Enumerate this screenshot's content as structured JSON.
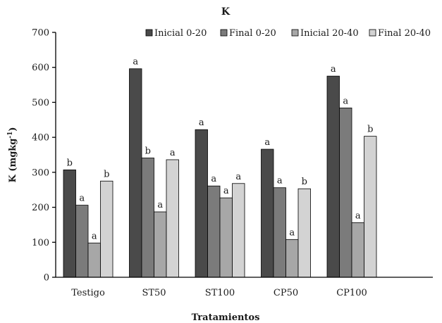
{
  "chart_data": {
    "type": "bar",
    "title": "K",
    "xlabel": "Tratamientos",
    "ylabel": "K (mgkg-1)",
    "ylabel_main": "K (mgkg",
    "ylabel_sup": "-1",
    "ylabel_end": ")",
    "ylim": [
      0,
      700
    ],
    "yticks": [
      0,
      100,
      200,
      300,
      400,
      500,
      600,
      700
    ],
    "grid": false,
    "legend": "top",
    "categories": [
      "Testigo",
      "ST50",
      "ST100",
      "CP50",
      "CP100"
    ],
    "series": [
      {
        "name": "Inicial 0-20",
        "color": "#4a4a4a",
        "values": [
          307,
          596,
          422,
          366,
          575
        ],
        "labels": [
          "b",
          "a",
          "a",
          "a",
          "a"
        ]
      },
      {
        "name": "Final 0-20",
        "color": "#7b7b7b",
        "values": [
          206,
          341,
          261,
          256,
          484
        ],
        "labels": [
          "a",
          "b",
          "a",
          "a",
          "a"
        ]
      },
      {
        "name": "Inicial 20-40",
        "color": "#a7a7a7",
        "values": [
          98,
          187,
          227,
          108,
          156
        ],
        "labels": [
          "a",
          "a",
          "a",
          "a",
          "a"
        ]
      },
      {
        "name": "Final 20-40",
        "color": "#d3d3d3",
        "values": [
          275,
          336,
          268,
          253,
          403
        ],
        "labels": [
          "b",
          "a",
          "a",
          "b",
          "b"
        ]
      }
    ]
  }
}
